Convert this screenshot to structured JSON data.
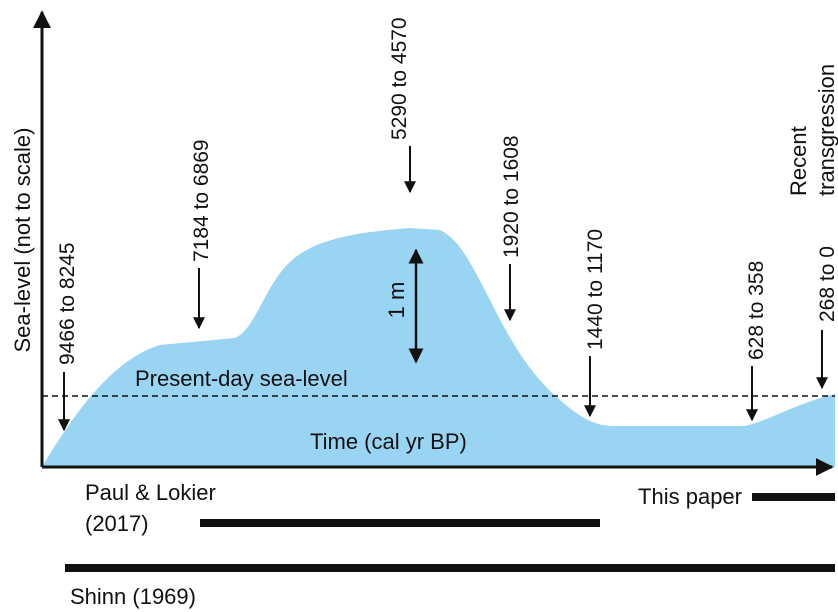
{
  "y_axis_label": "Sea-level (not to scale)",
  "reference_line": "Present-day sea-level",
  "x_axis_label": "Time (cal yr BP)",
  "scale_label": "1 m",
  "annotations": [
    "9466 to 8245",
    "7184 to 6869",
    "5290 to 4570",
    "1920 to 1608",
    "1440 to 1170",
    "628 to 358",
    "268 to 0"
  ],
  "event_label": [
    "Recent",
    "transgression"
  ],
  "records": [
    {
      "label": [
        "Paul & Lokier",
        "(2017)"
      ]
    },
    {
      "label": [
        "This paper"
      ]
    },
    {
      "label": [
        "Shinn (1969)"
      ]
    }
  ]
}
